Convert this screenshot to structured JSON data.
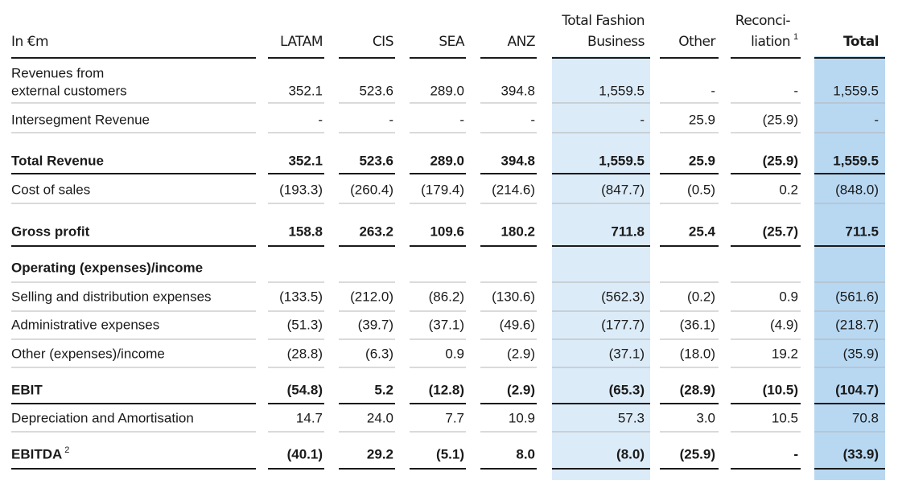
{
  "table": {
    "columns": [
      {
        "lines": [
          "In €m"
        ]
      },
      {
        "lines": [
          "LATAM"
        ]
      },
      {
        "lines": [
          "CIS"
        ]
      },
      {
        "lines": [
          "SEA"
        ]
      },
      {
        "lines": [
          "ANZ"
        ]
      },
      {
        "lines": [
          "Total Fashion",
          "Business"
        ]
      },
      {
        "lines": [
          "Other"
        ]
      },
      {
        "lines": [
          "Reconci-",
          "liation"
        ],
        "note": "1"
      },
      {
        "lines": [
          "Total"
        ]
      }
    ],
    "rows": [
      {
        "label": [
          "Revenues from",
          "external customers"
        ],
        "cells": [
          "352.1",
          "523.6",
          "289.0",
          "394.8",
          "1,559.5",
          "-",
          "-",
          "1,559.5"
        ]
      },
      {
        "label": [
          "Intersegment Revenue"
        ],
        "cells": [
          "-",
          "-",
          "-",
          "-",
          "-",
          "25.9",
          "(25.9)",
          "-"
        ]
      },
      {
        "label": [
          "Total Revenue"
        ],
        "bold": true,
        "cells": [
          "352.1",
          "523.6",
          "289.0",
          "394.8",
          "1,559.5",
          "25.9",
          "(25.9)",
          "1,559.5"
        ]
      },
      {
        "label": [
          "Cost of sales"
        ],
        "cells": [
          "(193.3)",
          "(260.4)",
          "(179.4)",
          "(214.6)",
          "(847.7)",
          "(0.5)",
          "0.2",
          "(848.0)"
        ]
      },
      {
        "label": [
          "Gross profit"
        ],
        "bold": true,
        "cells": [
          "158.8",
          "263.2",
          "109.6",
          "180.2",
          "711.8",
          "25.4",
          "(25.7)",
          "711.5"
        ]
      },
      {
        "label": [
          "Operating (expenses)/income"
        ],
        "bold": true,
        "cells": []
      },
      {
        "label": [
          "Selling and distribution expenses"
        ],
        "cells": [
          "(133.5)",
          "(212.0)",
          "(86.2)",
          "(130.6)",
          "(562.3)",
          "(0.2)",
          "0.9",
          "(561.6)"
        ]
      },
      {
        "label": [
          "Administrative expenses"
        ],
        "cells": [
          "(51.3)",
          "(39.7)",
          "(37.1)",
          "(49.6)",
          "(177.7)",
          "(36.1)",
          "(4.9)",
          "(218.7)"
        ]
      },
      {
        "label": [
          "Other (expenses)/income"
        ],
        "cells": [
          "(28.8)",
          "(6.3)",
          "0.9",
          "(2.9)",
          "(37.1)",
          "(18.0)",
          "19.2",
          "(35.9)"
        ]
      },
      {
        "label": [
          "EBIT"
        ],
        "bold": true,
        "cells": [
          "(54.8)",
          "5.2",
          "(12.8)",
          "(2.9)",
          "(65.3)",
          "(28.9)",
          "(10.5)",
          "(104.7)"
        ]
      },
      {
        "label": [
          "Depreciation and Amortisation"
        ],
        "cells": [
          "14.7",
          "24.0",
          "7.7",
          "10.9",
          "57.3",
          "3.0",
          "10.5",
          "70.8"
        ]
      },
      {
        "label": [
          "EBITDA"
        ],
        "note": "2",
        "bold": true,
        "cells": [
          "(40.1)",
          "29.2",
          "(5.1)",
          "8.0",
          "(8.0)",
          "(25.9)",
          "-",
          "(33.9)"
        ]
      }
    ]
  }
}
